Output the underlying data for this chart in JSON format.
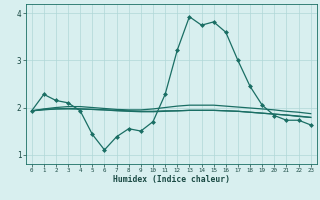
{
  "xlabel": "Humidex (Indice chaleur)",
  "background_color": "#d8efef",
  "grid_color": "#b0d8d8",
  "line_color": "#1a6e64",
  "x": [
    0,
    1,
    2,
    3,
    4,
    5,
    6,
    7,
    8,
    9,
    10,
    11,
    12,
    13,
    14,
    15,
    16,
    17,
    18,
    19,
    20,
    21,
    22,
    23
  ],
  "line1": [
    1.93,
    2.28,
    2.15,
    2.1,
    1.93,
    1.43,
    1.1,
    1.38,
    1.55,
    1.5,
    1.7,
    2.28,
    3.22,
    3.93,
    3.75,
    3.82,
    3.6,
    3.0,
    2.45,
    2.05,
    1.83,
    1.73,
    1.73,
    1.63
  ],
  "line2": [
    1.93,
    1.97,
    2.0,
    2.02,
    2.02,
    2.0,
    1.98,
    1.96,
    1.95,
    1.95,
    1.97,
    2.0,
    2.03,
    2.05,
    2.05,
    2.05,
    2.03,
    2.01,
    1.99,
    1.97,
    1.95,
    1.92,
    1.9,
    1.87
  ],
  "line3": [
    1.93,
    1.96,
    1.97,
    1.98,
    1.97,
    1.96,
    1.95,
    1.93,
    1.92,
    1.91,
    1.91,
    1.92,
    1.93,
    1.94,
    1.94,
    1.94,
    1.93,
    1.92,
    1.9,
    1.88,
    1.86,
    1.84,
    1.82,
    1.79
  ],
  "line4": [
    1.93,
    1.95,
    1.97,
    1.97,
    1.97,
    1.96,
    1.95,
    1.94,
    1.93,
    1.92,
    1.92,
    1.93,
    1.93,
    1.94,
    1.94,
    1.94,
    1.93,
    1.92,
    1.9,
    1.88,
    1.86,
    1.84,
    1.81,
    1.79
  ],
  "ylim": [
    0.8,
    4.2
  ],
  "yticks": [
    1,
    2,
    3,
    4
  ],
  "xticks": [
    0,
    1,
    2,
    3,
    4,
    5,
    6,
    7,
    8,
    9,
    10,
    11,
    12,
    13,
    14,
    15,
    16,
    17,
    18,
    19,
    20,
    21,
    22,
    23
  ],
  "markersize": 2.5,
  "linewidth": 0.9
}
